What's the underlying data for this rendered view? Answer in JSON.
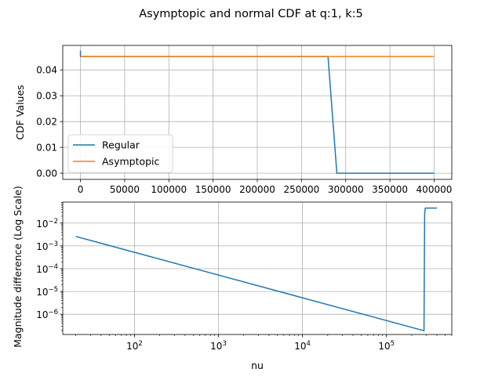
{
  "figure": {
    "title": "Asymptopic and normal CDF at q:1, k:5"
  },
  "colors": {
    "regular": "#1f77b4",
    "asymptotic": "#ff7f0e",
    "grid": "#b0b0b0",
    "axes": "#000000"
  },
  "chart_data": [
    {
      "type": "line",
      "title": "",
      "xlabel": "",
      "ylabel": "CDF Values",
      "xlim": [
        -20000,
        420000
      ],
      "ylim": [
        -0.0024,
        0.0495
      ],
      "x_ticks": [
        0,
        50000,
        100000,
        150000,
        200000,
        250000,
        300000,
        350000,
        400000
      ],
      "x_tick_labels": [
        "0",
        "50000",
        "100000",
        "150000",
        "200000",
        "250000",
        "300000",
        "350000",
        "400000"
      ],
      "y_ticks": [
        0.0,
        0.01,
        0.02,
        0.03,
        0.04
      ],
      "y_tick_labels": [
        "0.00",
        "0.01",
        "0.02",
        "0.03",
        "0.04"
      ],
      "grid": true,
      "legend": "lower-left",
      "series": [
        {
          "name": "Regular",
          "x": [
            20,
            20,
            1000,
            5000,
            280000,
            290000,
            400000
          ],
          "y": [
            0.0475,
            0.0452,
            0.0452,
            0.0452,
            0.0452,
            0.0,
            0.0
          ]
        },
        {
          "name": "Asymptopic",
          "x": [
            20,
            400000
          ],
          "y": [
            0.0452,
            0.0452
          ]
        }
      ]
    },
    {
      "type": "line",
      "title": "",
      "xlabel": "nu",
      "ylabel": "Magnitude difference (Log Scale)",
      "xscale": "log",
      "yscale": "log",
      "xlim": [
        14,
        600000
      ],
      "ylim": [
        1.3e-07,
        0.083
      ],
      "x_ticks": [
        100,
        1000,
        10000,
        100000
      ],
      "x_tick_labels": [
        "10^2",
        "10^3",
        "10^4",
        "10^5"
      ],
      "y_ticks": [
        1e-06,
        1e-05,
        0.0001,
        0.001,
        0.01
      ],
      "y_tick_labels": [
        "10^-6",
        "10^-5",
        "10^-4",
        "10^-3",
        "10^-2"
      ],
      "grid": true,
      "series": [
        {
          "x": [
            20,
            280000,
            285000,
            290000,
            400000
          ],
          "y": [
            0.0026,
            1.9e-07,
            0.025,
            0.0452,
            0.0452
          ]
        }
      ]
    }
  ]
}
